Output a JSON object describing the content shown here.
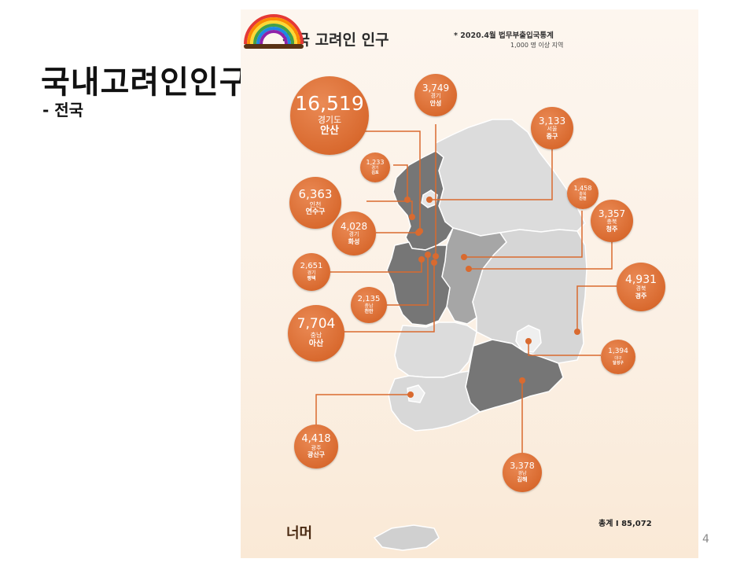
{
  "slide": {
    "title": "국내고려인인구",
    "subtitle": "- 전국",
    "page_number": "4"
  },
  "infographic": {
    "title": "전국 고려인 인구",
    "source_note": "* 2020.4월 법무부출입국통계",
    "source_sub": "1,000 명 이상 지역",
    "total": "총계  I  85,072",
    "logo_text": "너머",
    "colors": {
      "accent": "#d96a2f",
      "map_dark": "#767676",
      "map_mid": "#a6a6a6",
      "map_light": "#dddddd"
    },
    "bubbles": [
      {
        "id": "ansan",
        "value": "16,519",
        "province": "경기도",
        "city": "안산"
      },
      {
        "id": "anseong",
        "value": "3,749",
        "province": "경기",
        "city": "안성"
      },
      {
        "id": "junggu",
        "value": "3,133",
        "province": "서울",
        "city": "중구"
      },
      {
        "id": "gimpo",
        "value": "1,233",
        "province": "경기",
        "city": "김포"
      },
      {
        "id": "yeonsu",
        "value": "6,363",
        "province": "인천",
        "city": "연수구"
      },
      {
        "id": "jincheon",
        "value": "1,458",
        "province": "충북",
        "city": "진천"
      },
      {
        "id": "cheongju",
        "value": "3,357",
        "province": "충북",
        "city": "청주"
      },
      {
        "id": "hwaseong",
        "value": "4,028",
        "province": "경기",
        "city": "화성"
      },
      {
        "id": "pyeongtaek",
        "value": "2,651",
        "province": "경기",
        "city": "평택"
      },
      {
        "id": "gyeongju",
        "value": "4,931",
        "province": "경북",
        "city": "경주"
      },
      {
        "id": "cheonan",
        "value": "2,135",
        "province": "충남",
        "city": "천안"
      },
      {
        "id": "asan",
        "value": "7,704",
        "province": "충남",
        "city": "아산"
      },
      {
        "id": "dalseong",
        "value": "1,394",
        "province": "대구",
        "city": "달성구"
      },
      {
        "id": "gwangsan",
        "value": "4,418",
        "province": "광주",
        "city": "광산구"
      },
      {
        "id": "gimhae",
        "value": "3,378",
        "province": "경남",
        "city": "김해"
      }
    ]
  }
}
